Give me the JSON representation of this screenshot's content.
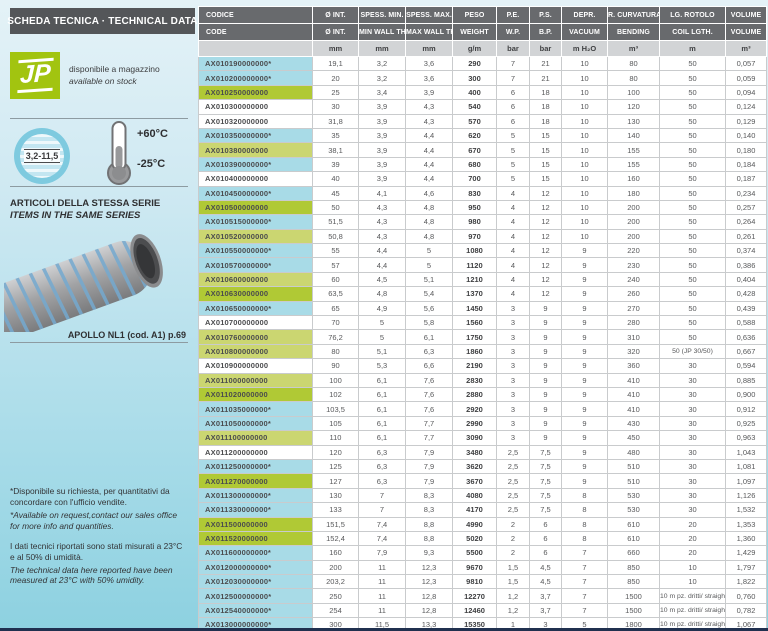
{
  "sidebar": {
    "header": "SCHEDA TECNICA · TECHNICAL DATA",
    "logo_text": "JP",
    "stock_it": "disponibile a magazzino",
    "stock_en": "available on stock",
    "size_badge": "3,2-11,5",
    "temp_max": "+60°C",
    "temp_min": "-25°C",
    "series_it": "ARTICOLI DELLA STESSA SERIE",
    "series_en": "ITEMS IN THE SAME SERIES",
    "series_item": "APOLLO NL1  (cod. A1) p.69",
    "note1_it": "*Disponibile su richiesta, per quantitativi da concordare con l'ufficio vendite.",
    "note1_en": "*Available on request,contact our sales office for more info and quantities.",
    "note2_it": "I dati tecnici riportati sono stati misurati a 23°C e al 50% di umidità.",
    "note2_en": "The technical data here reported have been measured at 23°C with 50% umidity."
  },
  "colors": {
    "highlight_blue": "#a8dbe7",
    "highlight_green": "#b0c935",
    "highlight_green_light": "#cbd671",
    "brand_green": "#a2c410",
    "header_gray": "#686a6d",
    "page_blue": "#8dd1e0"
  },
  "table": {
    "headers_row1": [
      "CODICE",
      "Ø INT.",
      "SPESS. MIN.",
      "SPESS. MAX.",
      "PESO",
      "P.E.",
      "P.S.",
      "DEPR.",
      "R. CURVATURA",
      "LG. ROTOLO",
      "VOLUME"
    ],
    "headers_row2": [
      "CODE",
      "Ø INT.",
      "MIN WALL TH.",
      "MAX WALL TH.",
      "WEIGHT",
      "W.P.",
      "B.P.",
      "VACUUM",
      "BENDING",
      "COIL LGTH.",
      "VOLUME"
    ],
    "units": [
      "",
      "mm",
      "mm",
      "mm",
      "g/m",
      "bar",
      "bar",
      "m H₂O",
      "m³",
      "m",
      "m³"
    ],
    "rows": [
      {
        "code": "AX010190000000*",
        "hl": "blue",
        "v": [
          "19,1",
          "3,2",
          "3,6",
          "290",
          "7",
          "21",
          "10",
          "80",
          "50",
          "0,057"
        ]
      },
      {
        "code": "AX010200000000*",
        "hl": "blue",
        "v": [
          "20",
          "3,2",
          "3,6",
          "300",
          "7",
          "21",
          "10",
          "80",
          "50",
          "0,059"
        ]
      },
      {
        "code": "AX010250000000",
        "hl": "green",
        "v": [
          "25",
          "3,4",
          "3,9",
          "400",
          "6",
          "18",
          "10",
          "100",
          "50",
          "0,094"
        ]
      },
      {
        "code": "AX010300000000",
        "hl": null,
        "v": [
          "30",
          "3,9",
          "4,3",
          "540",
          "6",
          "18",
          "10",
          "120",
          "50",
          "0,124"
        ]
      },
      {
        "code": "AX010320000000",
        "hl": null,
        "v": [
          "31,8",
          "3,9",
          "4,3",
          "570",
          "6",
          "18",
          "10",
          "130",
          "50",
          "0,129"
        ]
      },
      {
        "code": "AX010350000000*",
        "hl": "blue",
        "v": [
          "35",
          "3,9",
          "4,4",
          "620",
          "5",
          "15",
          "10",
          "140",
          "50",
          "0,140"
        ]
      },
      {
        "code": "AX010380000000",
        "hl": "green2",
        "v": [
          "38,1",
          "3,9",
          "4,4",
          "670",
          "5",
          "15",
          "10",
          "155",
          "50",
          "0,180"
        ]
      },
      {
        "code": "AX010390000000*",
        "hl": "blue",
        "v": [
          "39",
          "3,9",
          "4,4",
          "680",
          "5",
          "15",
          "10",
          "155",
          "50",
          "0,184"
        ]
      },
      {
        "code": "AX010400000000",
        "hl": null,
        "v": [
          "40",
          "3,9",
          "4,4",
          "700",
          "5",
          "15",
          "10",
          "160",
          "50",
          "0,187"
        ]
      },
      {
        "code": "AX010450000000*",
        "hl": "blue",
        "v": [
          "45",
          "4,1",
          "4,6",
          "830",
          "4",
          "12",
          "10",
          "180",
          "50",
          "0,234"
        ]
      },
      {
        "code": "AX010500000000",
        "hl": "green",
        "v": [
          "50",
          "4,3",
          "4,8",
          "950",
          "4",
          "12",
          "10",
          "200",
          "50",
          "0,257"
        ]
      },
      {
        "code": "AX010515000000*",
        "hl": "blue",
        "v": [
          "51,5",
          "4,3",
          "4,8",
          "980",
          "4",
          "12",
          "10",
          "200",
          "50",
          "0,264"
        ]
      },
      {
        "code": "AX010520000000",
        "hl": "green2",
        "v": [
          "50,8",
          "4,3",
          "4,8",
          "970",
          "4",
          "12",
          "10",
          "200",
          "50",
          "0,261"
        ]
      },
      {
        "code": "AX010550000000*",
        "hl": "blue",
        "v": [
          "55",
          "4,4",
          "5",
          "1080",
          "4",
          "12",
          "9",
          "220",
          "50",
          "0,374"
        ]
      },
      {
        "code": "AX010570000000*",
        "hl": "blue",
        "v": [
          "57",
          "4,4",
          "5",
          "1120",
          "4",
          "12",
          "9",
          "230",
          "50",
          "0,386"
        ]
      },
      {
        "code": "AX010600000000",
        "hl": "green2",
        "v": [
          "60",
          "4,5",
          "5,1",
          "1210",
          "4",
          "12",
          "9",
          "240",
          "50",
          "0,404"
        ]
      },
      {
        "code": "AX010630000000",
        "hl": "green",
        "v": [
          "63,5",
          "4,8",
          "5,4",
          "1370",
          "4",
          "12",
          "9",
          "260",
          "50",
          "0,428"
        ]
      },
      {
        "code": "AX010650000000*",
        "hl": "blue",
        "v": [
          "65",
          "4,9",
          "5,6",
          "1450",
          "3",
          "9",
          "9",
          "270",
          "50",
          "0,439"
        ]
      },
      {
        "code": "AX010700000000",
        "hl": null,
        "v": [
          "70",
          "5",
          "5,8",
          "1560",
          "3",
          "9",
          "9",
          "280",
          "50",
          "0,588"
        ]
      },
      {
        "code": "AX010760000000",
        "hl": "green2",
        "v": [
          "76,2",
          "5",
          "6,1",
          "1750",
          "3",
          "9",
          "9",
          "310",
          "50",
          "0,636"
        ]
      },
      {
        "code": "AX010800000000",
        "hl": "green2",
        "v": [
          "80",
          "5,1",
          "6,3",
          "1860",
          "3",
          "9",
          "9",
          "320",
          "50 (JP 30/50)",
          "0,667"
        ]
      },
      {
        "code": "AX010900000000",
        "hl": null,
        "v": [
          "90",
          "5,3",
          "6,6",
          "2190",
          "3",
          "9",
          "9",
          "360",
          "30",
          "0,594"
        ]
      },
      {
        "code": "AX011000000000",
        "hl": "green2",
        "v": [
          "100",
          "6,1",
          "7,6",
          "2830",
          "3",
          "9",
          "9",
          "410",
          "30",
          "0,885"
        ]
      },
      {
        "code": "AX011020000000",
        "hl": "green",
        "v": [
          "102",
          "6,1",
          "7,6",
          "2880",
          "3",
          "9",
          "9",
          "410",
          "30",
          "0,900"
        ]
      },
      {
        "code": "AX011035000000*",
        "hl": "blue",
        "v": [
          "103,5",
          "6,1",
          "7,6",
          "2920",
          "3",
          "9",
          "9",
          "410",
          "30",
          "0,912"
        ]
      },
      {
        "code": "AX011050000000*",
        "hl": "blue",
        "v": [
          "105",
          "6,1",
          "7,7",
          "2990",
          "3",
          "9",
          "9",
          "430",
          "30",
          "0,925"
        ]
      },
      {
        "code": "AX011100000000",
        "hl": "green2",
        "v": [
          "110",
          "6,1",
          "7,7",
          "3090",
          "3",
          "9",
          "9",
          "450",
          "30",
          "0,963"
        ]
      },
      {
        "code": "AX011200000000",
        "hl": null,
        "v": [
          "120",
          "6,3",
          "7,9",
          "3480",
          "2,5",
          "7,5",
          "9",
          "480",
          "30",
          "1,043"
        ]
      },
      {
        "code": "AX011250000000*",
        "hl": "blue",
        "v": [
          "125",
          "6,3",
          "7,9",
          "3620",
          "2,5",
          "7,5",
          "9",
          "510",
          "30",
          "1,081"
        ]
      },
      {
        "code": "AX011270000000",
        "hl": "green",
        "v": [
          "127",
          "6,3",
          "7,9",
          "3670",
          "2,5",
          "7,5",
          "9",
          "510",
          "30",
          "1,097"
        ]
      },
      {
        "code": "AX011300000000*",
        "hl": "blue",
        "v": [
          "130",
          "7",
          "8,3",
          "4080",
          "2,5",
          "7,5",
          "8",
          "530",
          "30",
          "1,126"
        ]
      },
      {
        "code": "AX011330000000*",
        "hl": "blue",
        "v": [
          "133",
          "7",
          "8,3",
          "4170",
          "2,5",
          "7,5",
          "8",
          "530",
          "30",
          "1,532"
        ]
      },
      {
        "code": "AX011500000000",
        "hl": "green",
        "v": [
          "151,5",
          "7,4",
          "8,8",
          "4990",
          "2",
          "6",
          "8",
          "610",
          "20",
          "1,353"
        ]
      },
      {
        "code": "AX011520000000",
        "hl": "green",
        "v": [
          "152,4",
          "7,4",
          "8,8",
          "5020",
          "2",
          "6",
          "8",
          "610",
          "20",
          "1,360"
        ]
      },
      {
        "code": "AX011600000000*",
        "hl": "blue",
        "v": [
          "160",
          "7,9",
          "9,3",
          "5500",
          "2",
          "6",
          "7",
          "660",
          "20",
          "1,429"
        ]
      },
      {
        "code": "AX012000000000*",
        "hl": "blue",
        "v": [
          "200",
          "11",
          "12,3",
          "9670",
          "1,5",
          "4,5",
          "7",
          "850",
          "10",
          "1,797"
        ]
      },
      {
        "code": "AX012030000000*",
        "hl": "blue",
        "v": [
          "203,2",
          "11",
          "12,3",
          "9810",
          "1,5",
          "4,5",
          "7",
          "850",
          "10",
          "1,822"
        ]
      },
      {
        "code": "AX012500000000*",
        "hl": "blue",
        "v": [
          "250",
          "11",
          "12,8",
          "12270",
          "1,2",
          "3,7",
          "7",
          "1500",
          "10 m pz. dritti/ straight",
          "0,760"
        ]
      },
      {
        "code": "AX012540000000*",
        "hl": "blue",
        "v": [
          "254",
          "11",
          "12,8",
          "12460",
          "1,2",
          "3,7",
          "7",
          "1500",
          "10 m pz. dritti/ straight",
          "0,782"
        ]
      },
      {
        "code": "AX013000000000*",
        "hl": "blue",
        "v": [
          "300",
          "11,5",
          "13,3",
          "15350",
          "1",
          "3",
          "5",
          "1800",
          "10 m pz. dritti/ straight",
          "1,067"
        ]
      },
      {
        "code": "AX013050000000*",
        "hl": "blue",
        "v": [
          "304,8",
          "11,5",
          "13,3",
          "15590",
          "1",
          "3",
          "5",
          "1800",
          "10 m pz. dritti/ straight",
          "1,098"
        ]
      }
    ]
  }
}
